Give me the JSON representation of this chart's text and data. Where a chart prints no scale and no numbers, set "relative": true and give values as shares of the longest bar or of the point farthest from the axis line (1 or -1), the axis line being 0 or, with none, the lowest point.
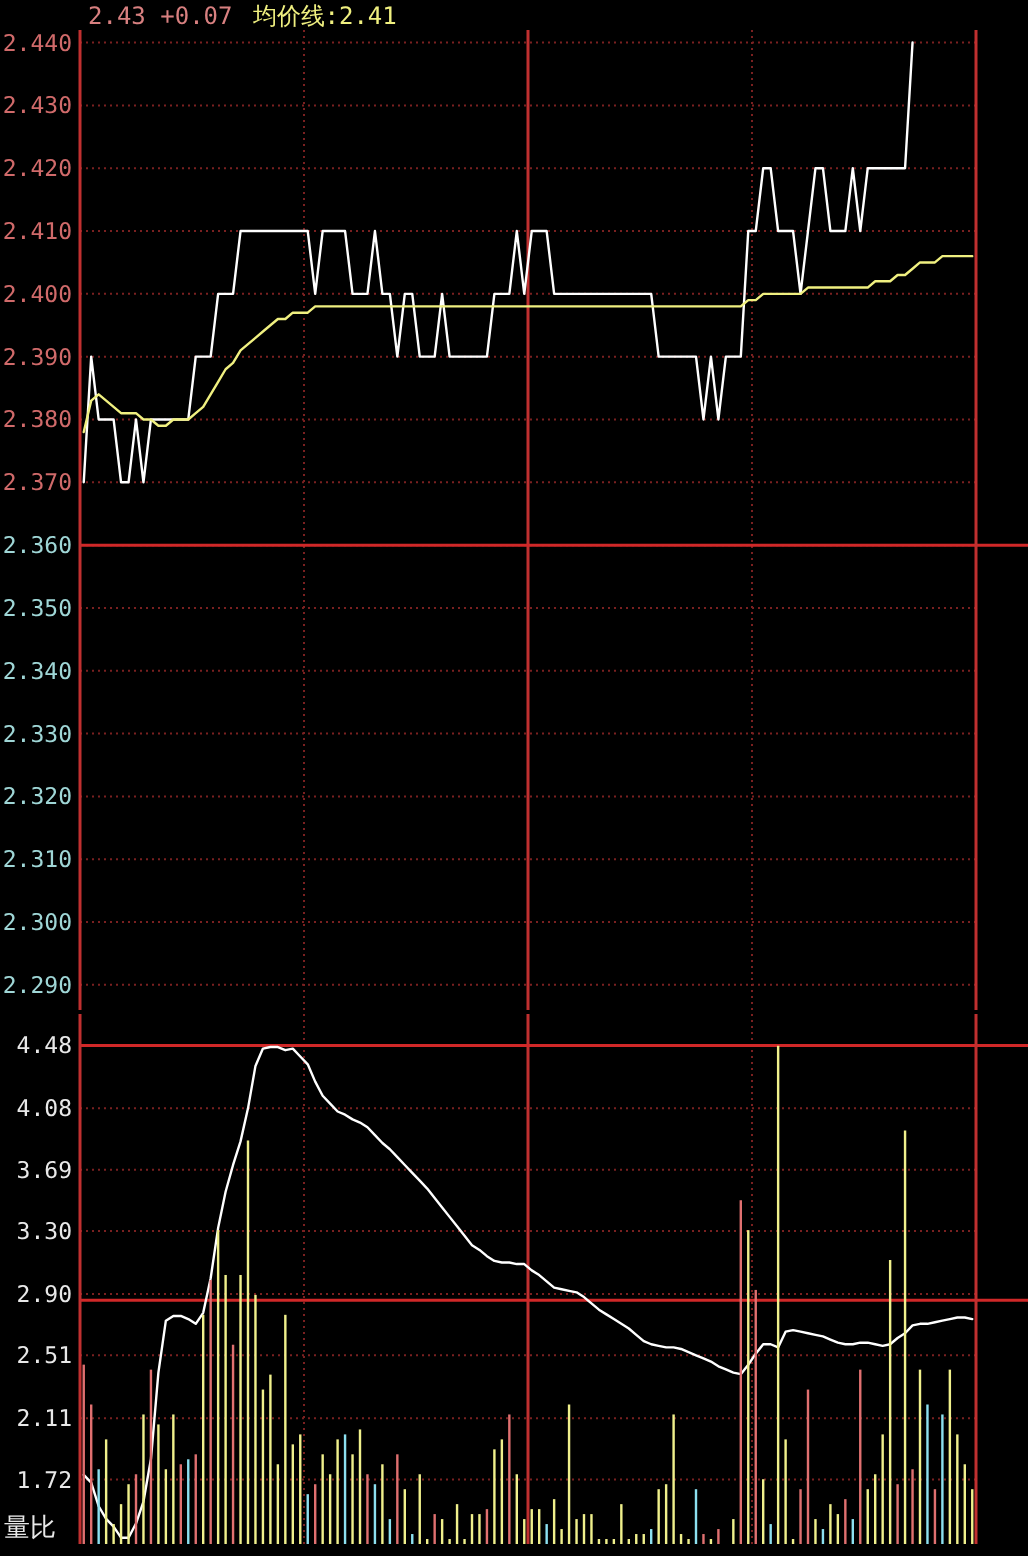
{
  "chart_data": [
    {
      "type": "line",
      "annotations": [
        "2.43 +0.07"
      ],
      "grid": true,
      "categories": [
        null,
        null,
        null,
        null,
        null,
        null,
        null,
        null,
        null,
        null,
        null,
        null,
        null,
        null,
        null,
        null,
        null,
        null,
        null,
        null,
        null,
        null,
        null,
        null,
        null,
        null,
        null,
        null,
        null,
        null,
        null,
        null,
        null,
        null,
        null,
        null,
        null,
        null,
        null,
        null,
        null,
        null,
        null,
        null,
        null,
        null,
        null,
        null,
        null,
        null,
        null,
        null,
        null,
        null,
        null,
        null,
        null,
        null,
        null,
        null,
        null,
        null,
        null,
        null,
        null,
        null,
        null,
        null,
        null,
        null,
        null,
        null,
        null,
        null,
        null,
        null,
        null,
        null,
        null,
        null,
        null,
        null,
        null,
        null,
        null,
        null,
        null,
        null,
        null,
        null,
        null,
        null,
        null,
        null,
        null,
        null,
        null,
        null,
        null,
        null,
        null,
        null,
        null,
        null,
        null,
        null,
        null,
        null,
        null,
        null,
        null,
        null,
        null,
        null,
        null,
        null,
        null,
        null,
        null,
        null
      ],
      "ylim": [
        2.286,
        2.442
      ],
      "yticks": [
        {
          "value": 2.44,
          "label": "2.440"
        },
        {
          "value": 2.43,
          "label": "2.430"
        },
        {
          "value": 2.42,
          "label": "2.420"
        },
        {
          "value": 2.41,
          "label": "2.410"
        },
        {
          "value": 2.4,
          "label": "2.400"
        },
        {
          "value": 2.39,
          "label": "2.390"
        },
        {
          "value": 2.38,
          "label": "2.380"
        },
        {
          "value": 2.37,
          "label": "2.370"
        },
        {
          "value": 2.36,
          "label": "2.360"
        },
        {
          "value": 2.35,
          "label": "2.350"
        },
        {
          "value": 2.34,
          "label": "2.340"
        },
        {
          "value": 2.33,
          "label": "2.330"
        },
        {
          "value": 2.32,
          "label": "2.320"
        },
        {
          "value": 2.31,
          "label": "2.310"
        },
        {
          "value": 2.3,
          "label": "2.300"
        },
        {
          "value": 2.29,
          "label": "2.290"
        }
      ],
      "ref_lines": [
        {
          "axis": "y",
          "value": 2.36,
          "color": "#d02828"
        }
      ],
      "series": [
        {
          "color": "#ffffff",
          "values": [
            2.37,
            2.39,
            2.38,
            2.38,
            2.38,
            2.37,
            2.37,
            2.38,
            2.37,
            2.38,
            2.38,
            2.38,
            2.38,
            2.38,
            2.38,
            2.39,
            2.39,
            2.39,
            2.4,
            2.4,
            2.4,
            2.41,
            2.41,
            2.41,
            2.41,
            2.41,
            2.41,
            2.41,
            2.41,
            2.41,
            2.41,
            2.4,
            2.41,
            2.41,
            2.41,
            2.41,
            2.4,
            2.4,
            2.4,
            2.41,
            2.4,
            2.4,
            2.39,
            2.4,
            2.4,
            2.39,
            2.39,
            2.39,
            2.4,
            2.39,
            2.39,
            2.39,
            2.39,
            2.39,
            2.39,
            2.4,
            2.4,
            2.4,
            2.41,
            2.4,
            2.41,
            2.41,
            2.41,
            2.4,
            2.4,
            2.4,
            2.4,
            2.4,
            2.4,
            2.4,
            2.4,
            2.4,
            2.4,
            2.4,
            2.4,
            2.4,
            2.4,
            2.39,
            2.39,
            2.39,
            2.39,
            2.39,
            2.39,
            2.38,
            2.39,
            2.38,
            2.39,
            2.39,
            2.39,
            2.41,
            2.41,
            2.42,
            2.42,
            2.41,
            2.41,
            2.41,
            2.4,
            2.41,
            2.42,
            2.42,
            2.41,
            2.41,
            2.41,
            2.42,
            2.41,
            2.42,
            2.42,
            2.42,
            2.42,
            2.42,
            2.42,
            2.44,
            null,
            null,
            null,
            null,
            null,
            null,
            null,
            null
          ]
        },
        {
          "name": "均价线:2.41",
          "color": "#f0f080",
          "values": [
            2.378,
            2.383,
            2.384,
            2.383,
            2.382,
            2.381,
            2.381,
            2.381,
            2.38,
            2.38,
            2.379,
            2.379,
            2.38,
            2.38,
            2.38,
            2.381,
            2.382,
            2.384,
            2.386,
            2.388,
            2.389,
            2.391,
            2.392,
            2.393,
            2.394,
            2.395,
            2.396,
            2.396,
            2.397,
            2.397,
            2.397,
            2.398,
            2.398,
            2.398,
            2.398,
            2.398,
            2.398,
            2.398,
            2.398,
            2.398,
            2.398,
            2.398,
            2.398,
            2.398,
            2.398,
            2.398,
            2.398,
            2.398,
            2.398,
            2.398,
            2.398,
            2.398,
            2.398,
            2.398,
            2.398,
            2.398,
            2.398,
            2.398,
            2.398,
            2.398,
            2.398,
            2.398,
            2.398,
            2.398,
            2.398,
            2.398,
            2.398,
            2.398,
            2.398,
            2.398,
            2.398,
            2.398,
            2.398,
            2.398,
            2.398,
            2.398,
            2.398,
            2.398,
            2.398,
            2.398,
            2.398,
            2.398,
            2.398,
            2.398,
            2.398,
            2.398,
            2.398,
            2.398,
            2.398,
            2.399,
            2.399,
            2.4,
            2.4,
            2.4,
            2.4,
            2.4,
            2.4,
            2.401,
            2.401,
            2.401,
            2.401,
            2.401,
            2.401,
            2.401,
            2.401,
            2.401,
            2.402,
            2.402,
            2.402,
            2.403,
            2.403,
            2.404,
            2.405,
            2.405,
            2.405,
            2.406,
            2.406,
            2.406,
            2.406,
            2.406
          ]
        }
      ]
    },
    {
      "type": "line",
      "ylabel": "量比",
      "grid": true,
      "categories": [
        null,
        null,
        null,
        null,
        null,
        null,
        null,
        null,
        null,
        null,
        null,
        null,
        null,
        null,
        null,
        null,
        null,
        null,
        null,
        null,
        null,
        null,
        null,
        null,
        null,
        null,
        null,
        null,
        null,
        null,
        null,
        null,
        null,
        null,
        null,
        null,
        null,
        null,
        null,
        null,
        null,
        null,
        null,
        null,
        null,
        null,
        null,
        null,
        null,
        null,
        null,
        null,
        null,
        null,
        null,
        null,
        null,
        null,
        null,
        null,
        null,
        null,
        null,
        null,
        null,
        null,
        null,
        null,
        null,
        null,
        null,
        null,
        null,
        null,
        null,
        null,
        null,
        null,
        null,
        null,
        null,
        null,
        null,
        null,
        null,
        null,
        null,
        null,
        null,
        null,
        null,
        null,
        null,
        null,
        null,
        null,
        null,
        null,
        null,
        null,
        null,
        null,
        null,
        null,
        null,
        null,
        null,
        null,
        null,
        null,
        null,
        null,
        null,
        null,
        null,
        null,
        null,
        null,
        null,
        null
      ],
      "ylim": [
        1.31,
        4.68
      ],
      "yticks": [
        4.48,
        4.08,
        3.69,
        {
          "value": 3.3,
          "label": "3.30"
        },
        {
          "value": 2.9,
          "label": "2.90"
        },
        2.51,
        2.11,
        1.72
      ],
      "ref_lines": [
        {
          "axis": "y",
          "value": 4.48,
          "color": "#d02828"
        },
        {
          "axis": "y",
          "value": 2.86,
          "color": "#d02828"
        }
      ],
      "series": [
        {
          "color": "#ffffff",
          "values": [
            1.75,
            1.7,
            1.55,
            1.47,
            1.42,
            1.35,
            1.35,
            1.44,
            1.58,
            1.85,
            2.4,
            2.73,
            2.76,
            2.76,
            2.74,
            2.71,
            2.78,
            3.0,
            3.32,
            3.55,
            3.72,
            3.87,
            4.08,
            4.35,
            4.46,
            4.47,
            4.47,
            4.45,
            4.46,
            4.41,
            4.36,
            4.25,
            4.16,
            4.11,
            4.06,
            4.04,
            4.01,
            3.99,
            3.96,
            3.91,
            3.86,
            3.82,
            3.77,
            3.72,
            3.67,
            3.62,
            3.57,
            3.51,
            3.45,
            3.39,
            3.33,
            3.27,
            3.21,
            3.18,
            3.14,
            3.11,
            3.1,
            3.1,
            3.09,
            3.09,
            3.05,
            3.02,
            2.98,
            2.94,
            2.93,
            2.92,
            2.91,
            2.88,
            2.84,
            2.8,
            2.77,
            2.74,
            2.71,
            2.68,
            2.64,
            2.6,
            2.58,
            2.57,
            2.56,
            2.56,
            2.55,
            2.53,
            2.51,
            2.49,
            2.47,
            2.44,
            2.42,
            2.4,
            2.39,
            2.45,
            2.52,
            2.58,
            2.58,
            2.56,
            2.66,
            2.67,
            2.66,
            2.65,
            2.64,
            2.63,
            2.61,
            2.59,
            2.58,
            2.58,
            2.59,
            2.59,
            2.58,
            2.57,
            2.58,
            2.62,
            2.65,
            2.7,
            2.71,
            2.71,
            2.72,
            2.73,
            2.74,
            2.75,
            2.75,
            2.74
          ]
        }
      ]
    },
    {
      "type": "bar",
      "relative": true,
      "categories": [
        null,
        null,
        null,
        null,
        null,
        null,
        null,
        null,
        null,
        null,
        null,
        null,
        null,
        null,
        null,
        null,
        null,
        null,
        null,
        null,
        null,
        null,
        null,
        null,
        null,
        null,
        null,
        null,
        null,
        null,
        null,
        null,
        null,
        null,
        null,
        null,
        null,
        null,
        null,
        null,
        null,
        null,
        null,
        null,
        null,
        null,
        null,
        null,
        null,
        null,
        null,
        null,
        null,
        null,
        null,
        null,
        null,
        null,
        null,
        null,
        null,
        null,
        null,
        null,
        null,
        null,
        null,
        null,
        null,
        null,
        null,
        null,
        null,
        null,
        null,
        null,
        null,
        null,
        null,
        null,
        null,
        null,
        null,
        null,
        null,
        null,
        null,
        null,
        null,
        null,
        null,
        null,
        null,
        null,
        null,
        null,
        null,
        null,
        null,
        null,
        null,
        null,
        null,
        null,
        null,
        null,
        null,
        null,
        null,
        null,
        null,
        null,
        null,
        null,
        null,
        null,
        null,
        null,
        null,
        null
      ],
      "values": [
        0.36,
        0.28,
        0.15,
        0.21,
        0.04,
        0.08,
        0.12,
        0.14,
        0.26,
        0.35,
        0.24,
        0.15,
        0.26,
        0.16,
        0.17,
        0.18,
        0.46,
        0.53,
        0.63,
        0.54,
        0.4,
        0.54,
        0.81,
        0.5,
        0.31,
        0.34,
        0.16,
        0.46,
        0.2,
        0.22,
        0.1,
        0.12,
        0.18,
        0.14,
        0.21,
        0.22,
        0.18,
        0.23,
        0.14,
        0.12,
        0.16,
        0.05,
        0.18,
        0.11,
        0.02,
        0.14,
        0.01,
        0.06,
        0.05,
        0.01,
        0.08,
        0.01,
        0.06,
        0.06,
        0.07,
        0.19,
        0.21,
        0.26,
        0.14,
        0.05,
        0.07,
        0.07,
        0.04,
        0.09,
        0.03,
        0.28,
        0.05,
        0.06,
        0.06,
        0.01,
        0.01,
        0.01,
        0.08,
        0.01,
        0.02,
        0.02,
        0.03,
        0.11,
        0.12,
        0.26,
        0.02,
        0.01,
        0.11,
        0.02,
        0.01,
        0.03,
        0,
        0.05,
        0.69,
        0.63,
        0.51,
        0.13,
        0.04,
        1.0,
        0.21,
        0.01,
        0.11,
        0.31,
        0.05,
        0.03,
        0.08,
        0.06,
        0.09,
        0.05,
        0.35,
        0.11,
        0.14,
        0.22,
        0.57,
        0.12,
        0.83,
        0.15,
        0.35,
        0.28,
        0.11,
        0.26,
        0.35,
        0.22,
        0.16,
        0.11
      ],
      "colors": [
        "#e07070",
        "#e07070",
        "#8ce0f0",
        "#f0f08c",
        "#f0f08c",
        "#f0f08c",
        "#f0f08c",
        "#e07070",
        "#f0f08c",
        "#e07070",
        "#f0f08c",
        "#f0f08c",
        "#f0f08c",
        "#e07070",
        "#8ce0f0",
        "#e07070",
        "#f0f08c",
        "#e07070",
        "#f0f08c",
        "#f0f08c",
        "#e07070",
        "#f0f08c",
        "#f0f08c",
        "#f0f08c",
        "#f0f08c",
        "#f0f08c",
        "#f0f08c",
        "#f0f08c",
        "#f0f08c",
        "#f0f08c",
        "#8ce0f0",
        "#e07070",
        "#f0f08c",
        "#f0f08c",
        "#f0f08c",
        "#8ce0f0",
        "#f0f08c",
        "#f0f08c",
        "#e07070",
        "#8ce0f0",
        "#f0f08c",
        "#8ce0f0",
        "#e07070",
        "#f0f08c",
        "#8ce0f0",
        "#f0f08c",
        "#f0f08c",
        "#e07070",
        "#f0f08c",
        "#f0f08c",
        "#f0f08c",
        "#f0f08c",
        "#f0f08c",
        "#f0f08c",
        "#e07070",
        "#f0f08c",
        "#f0f08c",
        "#e07070",
        "#f0f08c",
        "#f0f08c",
        "#f0f08c",
        "#f0f08c",
        "#8ce0f0",
        "#f0f08c",
        "#f0f08c",
        "#f0f08c",
        "#f0f08c",
        "#f0f08c",
        "#f0f08c",
        "#f0f08c",
        "#f0f08c",
        "#f0f08c",
        "#f0f08c",
        "#f0f08c",
        "#f0f08c",
        "#f0f08c",
        "#8ce0f0",
        "#f0f08c",
        "#f0f08c",
        "#f0f08c",
        "#f0f08c",
        "#f0f08c",
        "#8ce0f0",
        "#e07070",
        "#f0f08c",
        "#e07070",
        "#f0f08c",
        "#f0f08c",
        "#e07070",
        "#f0f08c",
        "#e07070",
        "#f0f08c",
        "#8ce0f0",
        "#f0f08c",
        "#f0f08c",
        "#f0f08c",
        "#e07070",
        "#e07070",
        "#f0f08c",
        "#8ce0f0",
        "#f0f08c",
        "#f0f08c",
        "#e07070",
        "#8ce0f0",
        "#e07070",
        "#f0f08c",
        "#f0f08c",
        "#f0f08c",
        "#f0f08c",
        "#e07070",
        "#f0f08c",
        "#e07070",
        "#f0f08c",
        "#8ce0f0",
        "#e07070",
        "#8ce0f0",
        "#f0f08c",
        "#f0f08c",
        "#f0f08c",
        "#f0f08c"
      ]
    }
  ]
}
